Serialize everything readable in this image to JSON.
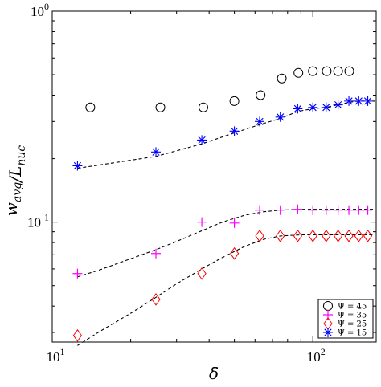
{
  "chart_data": {
    "type": "scatter",
    "xscale": "log",
    "yscale": "log",
    "xlim": [
      10,
      175
    ],
    "ylim": [
      0.027,
      1
    ],
    "xlabel": "δ̄",
    "ylabel": "w_avg / L_nuc",
    "xticks": [
      {
        "value": 10,
        "base": "10",
        "exp": "1"
      },
      {
        "value": 100,
        "base": "10",
        "exp": "2"
      }
    ],
    "yticks": [
      {
        "value": 1,
        "base": "10",
        "exp": "0"
      },
      {
        "value": 0.1,
        "base": "10",
        "exp": "-1"
      }
    ],
    "grid": false,
    "legend_position": "bottom-right",
    "series": [
      {
        "name": "Ψ = 45",
        "marker": "circle",
        "color": "#000000",
        "x": [
          14,
          26,
          38,
          50,
          63,
          76,
          88,
          100,
          113,
          125,
          138
        ],
        "y": [
          0.35,
          0.35,
          0.35,
          0.375,
          0.4,
          0.48,
          0.51,
          0.52,
          0.52,
          0.52,
          0.52
        ],
        "fit": null
      },
      {
        "name": "Ψ = 35",
        "marker": "plus",
        "color": "#ff00ff",
        "x": [
          12.5,
          25,
          37.5,
          50,
          62.5,
          75,
          87.5,
          100,
          112.5,
          125,
          137.5,
          150,
          162.5
        ],
        "y": [
          0.057,
          0.071,
          0.1,
          0.099,
          0.114,
          0.114,
          0.115,
          0.114,
          0.114,
          0.114,
          0.114,
          0.114,
          0.114
        ],
        "fit": {
          "x": [
            12.5,
            15,
            20,
            25,
            30,
            37.5,
            45,
            55,
            65,
            75,
            90,
            110,
            130,
            150,
            175
          ],
          "y": [
            0.055,
            0.059,
            0.067,
            0.074,
            0.081,
            0.091,
            0.1,
            0.108,
            0.112,
            0.114,
            0.115,
            0.115,
            0.115,
            0.115,
            0.115
          ]
        }
      },
      {
        "name": "Ψ = 25",
        "marker": "diamond",
        "color": "#ff0000",
        "x": [
          12.5,
          25,
          37.5,
          50,
          62.5,
          75,
          87.5,
          100,
          112.5,
          125,
          137.5,
          150,
          162.5
        ],
        "y": [
          0.029,
          0.043,
          0.057,
          0.071,
          0.086,
          0.086,
          0.086,
          0.086,
          0.086,
          0.086,
          0.086,
          0.086,
          0.086
        ],
        "fit": {
          "x": [
            12.5,
            15,
            20,
            25,
            30,
            37.5,
            45,
            55,
            65,
            75,
            90,
            110,
            130,
            150,
            175
          ],
          "y": [
            0.026,
            0.03,
            0.037,
            0.044,
            0.051,
            0.06,
            0.068,
            0.077,
            0.083,
            0.086,
            0.087,
            0.087,
            0.087,
            0.087,
            0.087
          ]
        }
      },
      {
        "name": "Ψ = 15",
        "marker": "asterisk",
        "color": "#0000ff",
        "x": [
          12.5,
          25,
          37.5,
          50,
          62.5,
          75,
          87.5,
          100,
          112.5,
          125,
          137.5,
          150,
          162.5
        ],
        "y": [
          0.185,
          0.215,
          0.245,
          0.27,
          0.3,
          0.315,
          0.345,
          0.35,
          0.35,
          0.36,
          0.375,
          0.375,
          0.375
        ],
        "fit": {
          "x": [
            12.5,
            25,
            37.5,
            50,
            62.5,
            75,
            87.5,
            100,
            112.5,
            125,
            137.5,
            150,
            162.5,
            175
          ],
          "y": [
            0.18,
            0.205,
            0.235,
            0.265,
            0.29,
            0.31,
            0.335,
            0.345,
            0.35,
            0.36,
            0.37,
            0.375,
            0.375,
            0.375
          ]
        }
      }
    ]
  }
}
